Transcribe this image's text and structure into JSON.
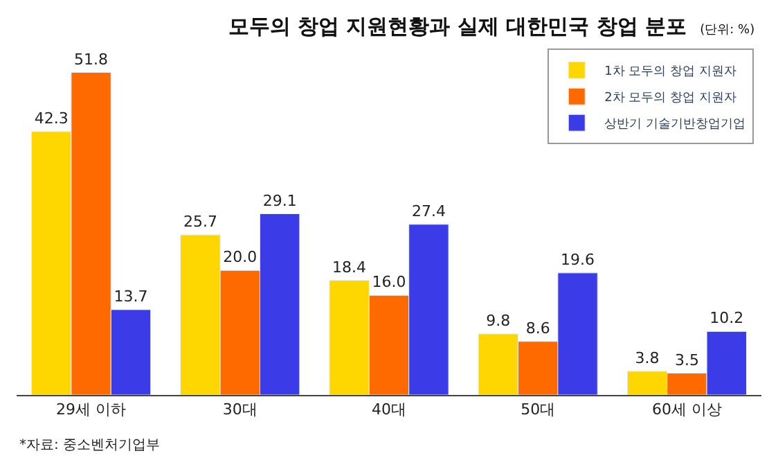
{
  "chart_data": {
    "type": "bar",
    "title": "모두의 창업 지원현황과 실제 대한민국 창업 분포",
    "subtitle": "(단위: %)",
    "categories": [
      "29세 이하",
      "30대",
      "40대",
      "50대",
      "60세 이상"
    ],
    "series": [
      {
        "name": "1차 모두의 창업 지원자",
        "color": "#ffd700",
        "values": [
          42.3,
          25.7,
          18.4,
          9.8,
          3.8
        ],
        "value_labels": [
          "42.3",
          "25.7",
          "18.4",
          "9.8",
          "3.8"
        ]
      },
      {
        "name": "2차 모두의 창업 지원자",
        "color": "#ff6a00",
        "values": [
          51.8,
          20.0,
          16.0,
          8.6,
          3.5
        ],
        "value_labels": [
          "51.8",
          "20.0",
          "16.0",
          "8.6",
          "3.5"
        ]
      },
      {
        "name": "상반기 기술기반창업기업",
        "color": "#3b3be8",
        "values": [
          13.7,
          29.1,
          27.4,
          19.6,
          10.2
        ],
        "value_labels": [
          "13.7",
          "29.1",
          "27.4",
          "19.6",
          "10.2"
        ]
      }
    ],
    "legend": "top right",
    "annotations": [
      "*자료: 중소벤처기업부"
    ]
  }
}
